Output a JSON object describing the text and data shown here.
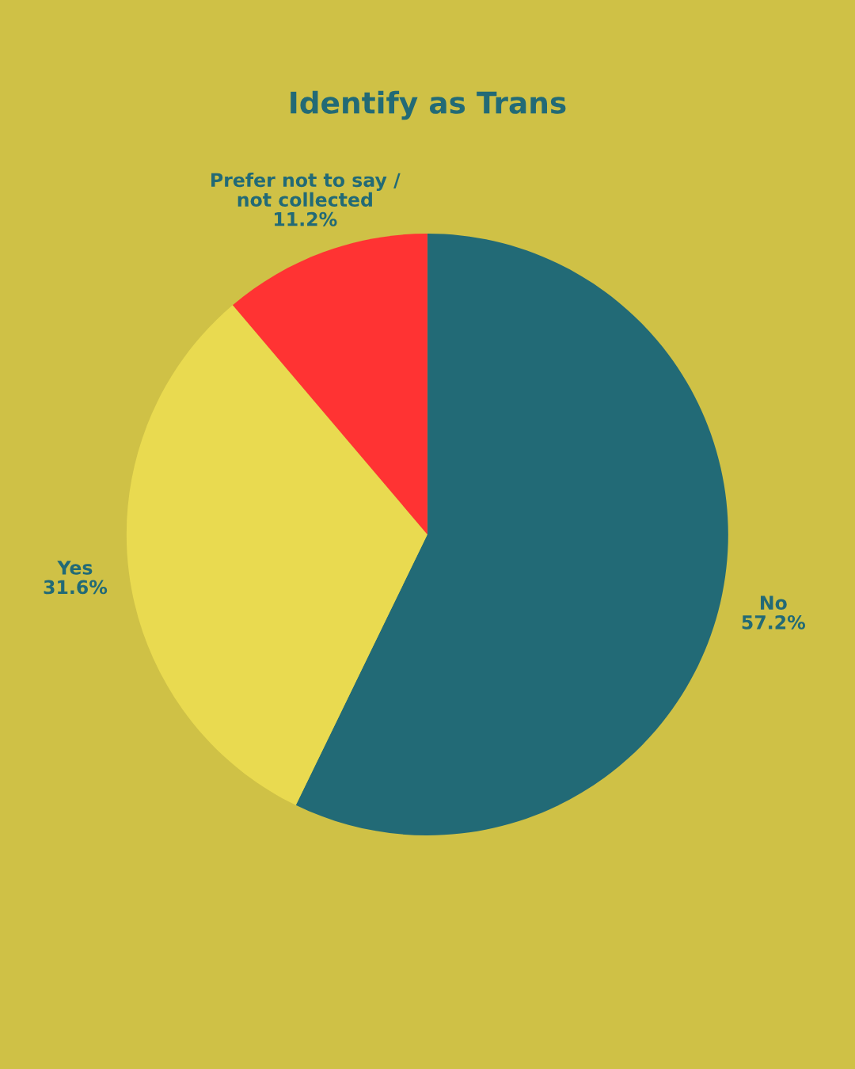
{
  "chart_data": {
    "type": "pie",
    "title": "Identify as Trans",
    "categories": [
      "No",
      "Yes",
      "Prefer not to say /\nnot collected"
    ],
    "values": [
      57.2,
      31.6,
      11.2
    ],
    "value_labels": [
      "57.2%",
      "31.6%",
      "11.2%"
    ],
    "colors": [
      "#226a76",
      "#e9da50",
      "#ff3333"
    ],
    "legend": false
  }
}
